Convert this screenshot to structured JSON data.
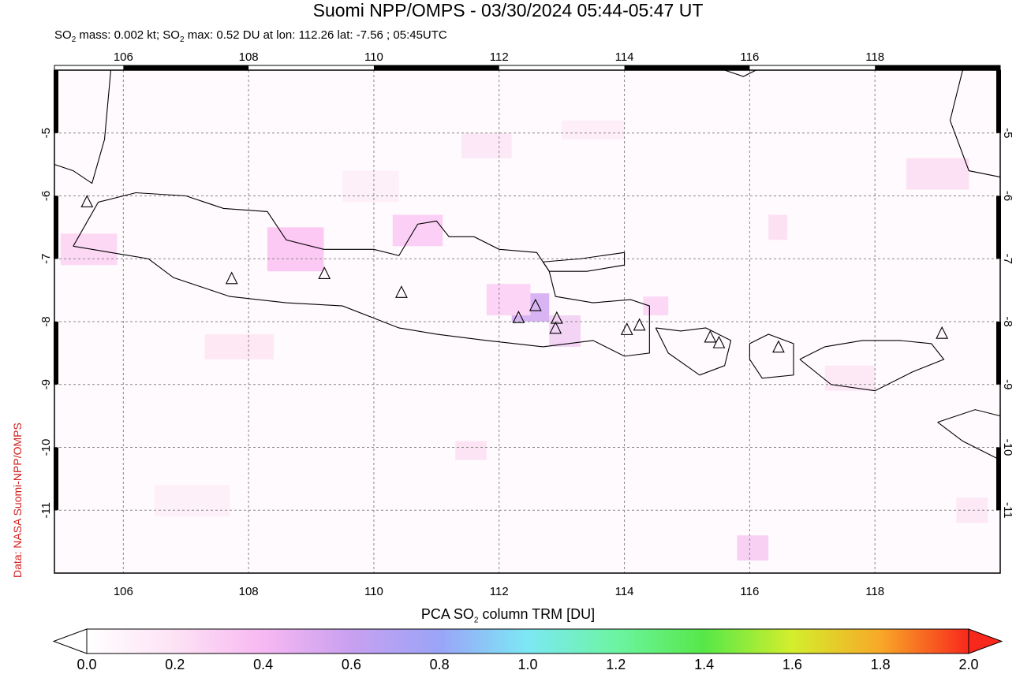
{
  "title": "Suomi NPP/OMPS - 03/30/2024 05:44-05:47 UT",
  "subtitle": {
    "prefix": "SO",
    "sub1": "2",
    "middle": " mass: 0.002 kt; SO",
    "sub2": "2",
    "suffix": " max: 0.52 DU at lon: 112.26 lat: -7.56 ; 05:45UTC"
  },
  "credit": "Data: NASA Suomi-NPP/OMPS",
  "map": {
    "lon_range": [
      104.9,
      120.0
    ],
    "lat_range": [
      -12.0,
      -4.0
    ],
    "lon_ticks": [
      "106",
      "108",
      "110",
      "112",
      "114",
      "116",
      "118"
    ],
    "lat_ticks": [
      "-5",
      "-6",
      "-7",
      "-8",
      "-9",
      "-10",
      "-11"
    ],
    "grid": true
  },
  "volcanoes": [
    [
      105.42,
      -6.1
    ],
    [
      107.73,
      -7.32
    ],
    [
      109.21,
      -7.24
    ],
    [
      110.44,
      -7.54
    ],
    [
      112.31,
      -7.94
    ],
    [
      112.58,
      -7.75
    ],
    [
      112.92,
      -7.95
    ],
    [
      112.9,
      -8.11
    ],
    [
      114.04,
      -8.13
    ],
    [
      114.24,
      -8.06
    ],
    [
      115.37,
      -8.25
    ],
    [
      115.51,
      -8.34
    ],
    [
      116.46,
      -8.41
    ],
    [
      119.07,
      -8.19
    ]
  ],
  "colorbar": {
    "label_prefix": "PCA SO",
    "label_sub": "2",
    "label_suffix": " column TRM [DU]",
    "ticks": [
      "0.0",
      "0.2",
      "0.4",
      "0.6",
      "0.8",
      "1.0",
      "1.2",
      "1.4",
      "1.6",
      "1.8",
      "2.0"
    ],
    "colors": [
      "#ffffff",
      "#fde2f5",
      "#f7b8f2",
      "#c8a0f0",
      "#9aa4f8",
      "#7ce8f4",
      "#6cf4a2",
      "#56e848",
      "#d4ee2c",
      "#f8a828",
      "#f8281c"
    ]
  }
}
